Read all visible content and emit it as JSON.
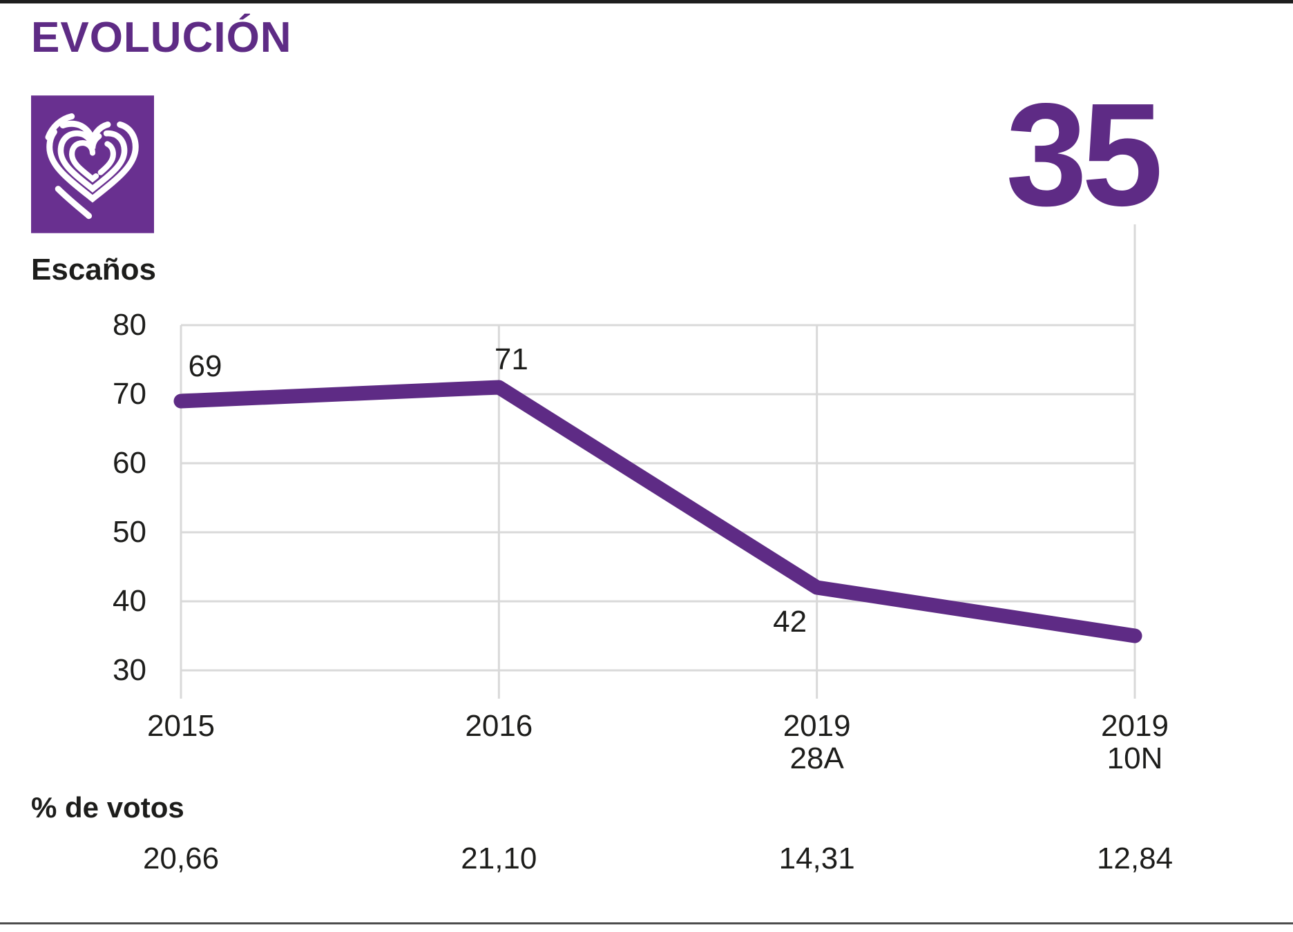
{
  "header": {
    "title": "EVOLUCIÓN"
  },
  "logo": {
    "icon": "podemos-heart-logo",
    "bg_color": "#693090",
    "stroke_color": "#ffffff"
  },
  "chart_data": {
    "type": "line",
    "title": "EVOLUCIÓN",
    "y_axis_label": "Escaños",
    "big_number": "35",
    "categories": [
      [
        "2015"
      ],
      [
        "2016"
      ],
      [
        "2019",
        "28A"
      ],
      [
        "2019",
        "10N"
      ]
    ],
    "series": [
      {
        "name": "Escaños",
        "values": [
          69,
          71,
          42,
          35
        ]
      }
    ],
    "point_labels": [
      "69",
      "71",
      "42",
      null
    ],
    "y_ticks": [
      80,
      70,
      60,
      50,
      40,
      30
    ],
    "ylim": [
      26,
      80
    ],
    "grid": true,
    "legend_position": "none",
    "votes_label": "% de votos",
    "votes_pct": [
      "20,66",
      "21,10",
      "14,31",
      "12,84"
    ],
    "line_color": "#5e2b85",
    "grid_color": "#d9d9d9",
    "text_color": "#1d1d1b"
  }
}
